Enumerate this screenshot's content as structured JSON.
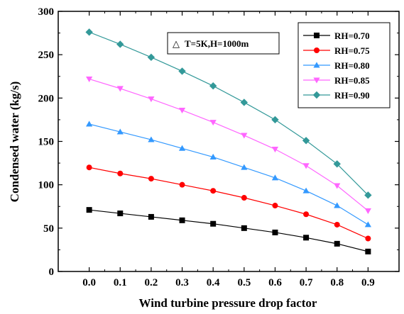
{
  "chart_data": {
    "type": "line",
    "xlabel": "Wind turbine pressure drop factor",
    "ylabel": "Condensed water (kg/s)",
    "x": [
      0.0,
      0.1,
      0.2,
      0.3,
      0.4,
      0.5,
      0.6,
      0.7,
      0.8,
      0.9
    ],
    "x_tick_labels": [
      "0.0",
      "0.1",
      "0.2",
      "0.3",
      "0.4",
      "0.5",
      "0.6",
      "0.7",
      "0.8",
      "0.9"
    ],
    "xlim": [
      -0.1,
      1.0
    ],
    "ylim": [
      0,
      300
    ],
    "y_ticks": [
      0,
      50,
      100,
      150,
      200,
      250,
      300
    ],
    "grid": false,
    "legend_position": "top-right",
    "annotation": {
      "symbol": "△",
      "text": "T=5K,H=1000m"
    },
    "series": [
      {
        "name": "RH=0.70",
        "color": "#000000",
        "marker": "square",
        "values": [
          71,
          67,
          63,
          59,
          55,
          50,
          45,
          39,
          32,
          23
        ]
      },
      {
        "name": "RH=0.75",
        "color": "#ff0000",
        "marker": "circle",
        "values": [
          120,
          113,
          107,
          100,
          93,
          85,
          76,
          66,
          54,
          38
        ]
      },
      {
        "name": "RH=0.80",
        "color": "#3399ff",
        "marker": "triangle-up",
        "values": [
          170,
          161,
          152,
          142,
          132,
          120,
          108,
          93,
          76,
          54
        ]
      },
      {
        "name": "RH=0.85",
        "color": "#ff66ff",
        "marker": "triangle-down",
        "values": [
          222,
          211,
          199,
          186,
          172,
          157,
          141,
          122,
          99,
          70
        ]
      },
      {
        "name": "RH=0.90",
        "color": "#339999",
        "marker": "diamond",
        "values": [
          276,
          262,
          247,
          231,
          214,
          195,
          175,
          151,
          124,
          88
        ]
      }
    ]
  }
}
